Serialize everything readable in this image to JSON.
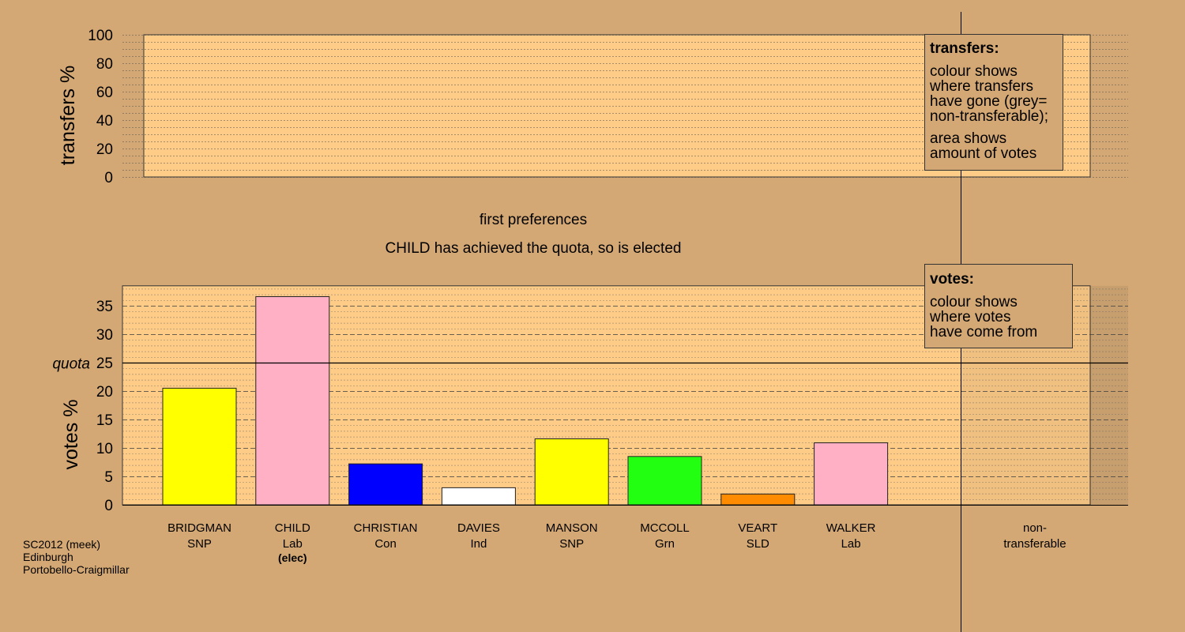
{
  "chart_data": {
    "type": "bar",
    "title": "first preferences",
    "subtitle": "CHILD has achieved the quota, so is elected",
    "candidates": [
      {
        "name": "BRIDGMAN",
        "party": "SNP",
        "note": "",
        "value": 20.5,
        "color": "#FFFF00"
      },
      {
        "name": "CHILD",
        "party": "Lab",
        "note": "(elec)",
        "value": 36.6,
        "color": "#FFB0C4"
      },
      {
        "name": "CHRISTIAN",
        "party": "Con",
        "note": "",
        "value": 7.2,
        "color": "#0000FF"
      },
      {
        "name": "DAVIES",
        "party": "Ind",
        "note": "",
        "value": 3.0,
        "color": "#FFFFFF"
      },
      {
        "name": "MANSON",
        "party": "SNP",
        "note": "",
        "value": 11.6,
        "color": "#FFFF00"
      },
      {
        "name": "MCCOLL",
        "party": "Grn",
        "note": "",
        "value": 8.5,
        "color": "#22FF11"
      },
      {
        "name": "VEART",
        "party": "SLD",
        "note": "",
        "value": 1.9,
        "color": "#FF8C00"
      },
      {
        "name": "WALKER",
        "party": "Lab",
        "note": "",
        "value": 10.9,
        "color": "#FFB0C4"
      }
    ],
    "nontransferable": {
      "line1": "non-",
      "line2": "transferable",
      "value": 0
    },
    "quota": {
      "label": "quota",
      "value": 25
    },
    "top_panel": {
      "ylabel": "transfers %",
      "ylim": [
        0,
        100
      ],
      "ticks": [
        "0",
        "20",
        "40",
        "60",
        "80",
        "100"
      ]
    },
    "bottom_panel": {
      "ylabel": "votes %",
      "ylim": [
        0,
        38.5
      ],
      "ticks": [
        "0",
        "5",
        "10",
        "15",
        "20",
        "25",
        "30",
        "35"
      ]
    },
    "colors": {
      "background": "#D4A874",
      "plot_fill": "#FFCC88"
    }
  },
  "legend_transfers": {
    "title": "transfers:",
    "lines1": [
      "colour shows",
      "where transfers",
      "have gone (grey=",
      "non-transferable);"
    ],
    "lines2": [
      "area shows",
      "amount of votes"
    ]
  },
  "legend_votes": {
    "title": "votes:",
    "lines": [
      "colour shows",
      "where votes",
      "have come from"
    ]
  },
  "footer": [
    "SC2012 (meek)",
    "Edinburgh",
    "Portobello-Craigmillar"
  ]
}
